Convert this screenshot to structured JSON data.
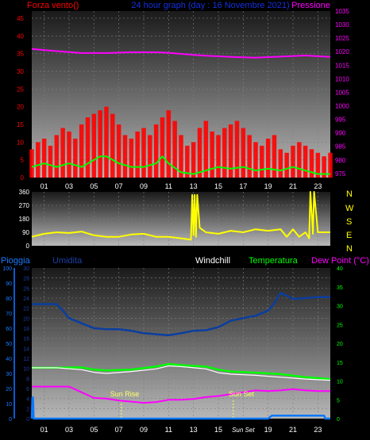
{
  "colors": {
    "background": "#000000",
    "wind": "#ff0000",
    "gust_avg": "#00ff00",
    "pressure": "#ff00ff",
    "direction": "#ffff00",
    "humidity": "#0a3ea0",
    "windchill": "#ffffff",
    "temperature": "#00ff00",
    "dew_point": "#ff00ff",
    "rain": "#0a78ff",
    "sun_marker": "#ffff66",
    "plot_top": "#1a1a1a",
    "plot_bottom": "#b8b8b8",
    "grid": "#808080"
  },
  "header": {
    "wind_label": "Forza vento()",
    "title": "24 hour graph (day : 16 Novembre 2021)",
    "pressure_label": "Pressione"
  },
  "direction_labels": [
    "N",
    "W",
    "S",
    "E",
    "N"
  ],
  "lower_labels": {
    "rain": "Pioggia",
    "humidity": "Umidita",
    "windchill": "Windchill",
    "temperature": "Temperatura",
    "dew_point": "Dew Point (°C)"
  },
  "markers": {
    "sunrise": "Sun Rise",
    "sunset": "Sun Set"
  },
  "chart_data": [
    {
      "type": "line",
      "title": "24 hour graph (day : 16 Novembre 2021)",
      "x_ticks": [
        "01",
        "03",
        "05",
        "07",
        "09",
        "11",
        "13",
        "15",
        "17",
        "19",
        "21",
        "23"
      ],
      "xlim": [
        0,
        24
      ],
      "y_left": {
        "label": "Forza vento()",
        "ticks": [
          0,
          5,
          10,
          15,
          20,
          25,
          30,
          35,
          40,
          45
        ],
        "lim": [
          0,
          47
        ]
      },
      "y_right": {
        "label": "Pressione",
        "ticks": [
          975,
          980,
          985,
          990,
          995,
          1000,
          1005,
          1010,
          1015,
          1020,
          1025,
          1030,
          1035
        ],
        "lim": [
          973.5,
          1035
        ]
      },
      "grid": true,
      "series": [
        {
          "name": "Forza vento()",
          "axis": "left",
          "kind": "bars",
          "x": [
            0,
            0.5,
            1,
            1.5,
            2,
            2.5,
            3,
            3.5,
            4,
            4.5,
            5,
            5.5,
            6,
            6.5,
            7,
            7.5,
            8,
            8.5,
            9,
            9.5,
            10,
            10.5,
            11,
            11.5,
            12,
            12.5,
            13,
            13.5,
            14,
            14.5,
            15,
            15.5,
            16,
            16.5,
            17,
            17.5,
            18,
            18.5,
            19,
            19.5,
            20,
            20.5,
            21,
            21.5,
            22,
            22.5,
            23,
            23.5,
            24
          ],
          "y": [
            8,
            10,
            11,
            9,
            12,
            14,
            13,
            11,
            15,
            17,
            18,
            19,
            20,
            18,
            15,
            12,
            11,
            13,
            14,
            12,
            15,
            17,
            19,
            16,
            12,
            9,
            10,
            14,
            16,
            13,
            12,
            14,
            15,
            16,
            14,
            12,
            10,
            9,
            11,
            12,
            8,
            7,
            9,
            10,
            9,
            8,
            7,
            6,
            7
          ]
        },
        {
          "name": "media vento",
          "axis": "left",
          "kind": "line",
          "x": [
            0,
            1,
            2,
            3,
            4,
            5,
            5.5,
            6,
            7,
            8,
            9,
            10,
            10.5,
            11,
            12,
            13,
            14,
            15,
            16,
            17,
            18,
            19,
            20,
            21,
            22,
            23,
            24
          ],
          "y": [
            3,
            4,
            3,
            4,
            3,
            5,
            6,
            6,
            4,
            3,
            3,
            4,
            6,
            4,
            1.5,
            1,
            2,
            3,
            2.5,
            3,
            2,
            2.5,
            2,
            3,
            2,
            1,
            1
          ]
        },
        {
          "name": "Pressione",
          "axis": "right",
          "kind": "line",
          "x": [
            0,
            2,
            4,
            6,
            8,
            10,
            11,
            12,
            14,
            16,
            18,
            20,
            22,
            24
          ],
          "y": [
            1021,
            1020.2,
            1019.5,
            1019.5,
            1019.8,
            1019.8,
            1019.6,
            1019.2,
            1018.5,
            1018.1,
            1017.8,
            1018.2,
            1018.6,
            1018.1
          ]
        }
      ]
    },
    {
      "type": "line",
      "x_ticks": [],
      "xlim": [
        0,
        24
      ],
      "y_left": {
        "ticks": [
          0,
          90,
          180,
          270,
          360
        ],
        "lim": [
          0,
          360
        ]
      },
      "grid": true,
      "series": [
        {
          "name": "direzione vento",
          "axis": "left",
          "kind": "line",
          "x": [
            0,
            1,
            2,
            3,
            4,
            5,
            6,
            7,
            8,
            9,
            10,
            11,
            12,
            12.8,
            12.9,
            13.0,
            13.1,
            13.2,
            13.3,
            13.5,
            14,
            15,
            16,
            17,
            18,
            19,
            20,
            20.5,
            21,
            21.5,
            22,
            22.3,
            22.4,
            22.6,
            22.7,
            23,
            24
          ],
          "y": [
            60,
            80,
            90,
            85,
            95,
            70,
            60,
            60,
            75,
            80,
            60,
            60,
            50,
            40,
            340,
            70,
            340,
            60,
            340,
            120,
            90,
            80,
            100,
            90,
            110,
            100,
            110,
            60,
            110,
            60,
            90,
            50,
            360,
            80,
            360,
            90,
            90
          ]
        }
      ]
    },
    {
      "type": "line",
      "x_ticks": [
        "01",
        "03",
        "05",
        "07",
        "09",
        "11",
        "13",
        "15",
        "Sun Set",
        "19",
        "21",
        "23"
      ],
      "xlim": [
        0,
        24
      ],
      "y_rain": {
        "label": "Pioggia",
        "ticks": [
          0,
          10,
          20,
          30,
          40,
          50,
          60,
          70,
          80,
          90,
          100
        ],
        "lim": [
          0,
          100
        ]
      },
      "y_humidity": {
        "label": "Umidita",
        "ticks": [
          0,
          2,
          4,
          6,
          8,
          10,
          12,
          14,
          16,
          18,
          20,
          22,
          24,
          26,
          28,
          30
        ],
        "lim": [
          0,
          30
        ]
      },
      "y_right": {
        "label": "Dew Point (°C)",
        "ticks": [
          0,
          5,
          10,
          15,
          20,
          25,
          30,
          35,
          40
        ],
        "lim": [
          0,
          40
        ]
      },
      "grid": true,
      "annotations": [
        {
          "label": "Sun Rise",
          "x": 7.2
        },
        {
          "label": "Sun Set",
          "x": 16.2
        }
      ],
      "series": [
        {
          "name": "Umidita",
          "axis": "humidity",
          "kind": "line",
          "x": [
            0,
            1,
            2,
            2.5,
            3,
            4,
            5,
            6,
            7,
            8,
            9,
            10,
            11,
            12,
            13,
            14,
            15,
            16,
            17,
            18,
            19,
            19.5,
            20,
            20.5,
            21,
            22,
            23,
            24
          ],
          "y": [
            22.8,
            22.8,
            22.8,
            21.5,
            20,
            19,
            18,
            17.8,
            17.8,
            17.5,
            17,
            16.8,
            16.6,
            17,
            17.5,
            17.6,
            18.2,
            19.5,
            20,
            20.5,
            21.5,
            23,
            25,
            24.5,
            23.8,
            24,
            24.2,
            24.2
          ]
        },
        {
          "name": "Windchill",
          "axis": "right",
          "kind": "line",
          "x": [
            0,
            2,
            4,
            5,
            6,
            8,
            10,
            11,
            12,
            14,
            15,
            16,
            18,
            20,
            22,
            24
          ],
          "y": [
            13.5,
            13.5,
            13,
            12.3,
            12,
            12.5,
            13.2,
            14,
            13.8,
            13.2,
            12.2,
            11.8,
            11.5,
            11,
            10.5,
            10.2
          ]
        },
        {
          "name": "Temperatura",
          "axis": "right",
          "kind": "line",
          "x": [
            0,
            2,
            4,
            5,
            6,
            8,
            10,
            11,
            12,
            14,
            15,
            16,
            18,
            20,
            22,
            24
          ],
          "y": [
            13.5,
            13.5,
            13.6,
            13,
            12.8,
            13,
            13.8,
            14.5,
            14.2,
            13.8,
            13,
            12.5,
            12.2,
            11.8,
            11,
            10.5
          ]
        },
        {
          "name": "Dew Point (°C)",
          "axis": "right",
          "kind": "line",
          "x": [
            0,
            1,
            2,
            3,
            4,
            5,
            6,
            7,
            8,
            9,
            10,
            11,
            12,
            13,
            14,
            15,
            16,
            17,
            18,
            19,
            20,
            21,
            22,
            23,
            24
          ],
          "y": [
            8.5,
            8.5,
            8.5,
            8.5,
            7,
            5.5,
            5.3,
            4.8,
            4.5,
            4.2,
            4.4,
            5,
            5,
            5.2,
            5.7,
            6,
            6.5,
            7,
            7.5,
            7.3,
            7.5,
            7.8,
            7.5,
            7.3,
            7.3
          ]
        },
        {
          "name": "Pioggia",
          "axis": "rain",
          "kind": "line",
          "x": [
            0,
            0.05,
            0.1,
            0.15,
            19,
            19.3,
            23.5,
            23.6,
            24
          ],
          "y": [
            0,
            14,
            14,
            0,
            0,
            2,
            2,
            0,
            0
          ]
        }
      ]
    }
  ]
}
